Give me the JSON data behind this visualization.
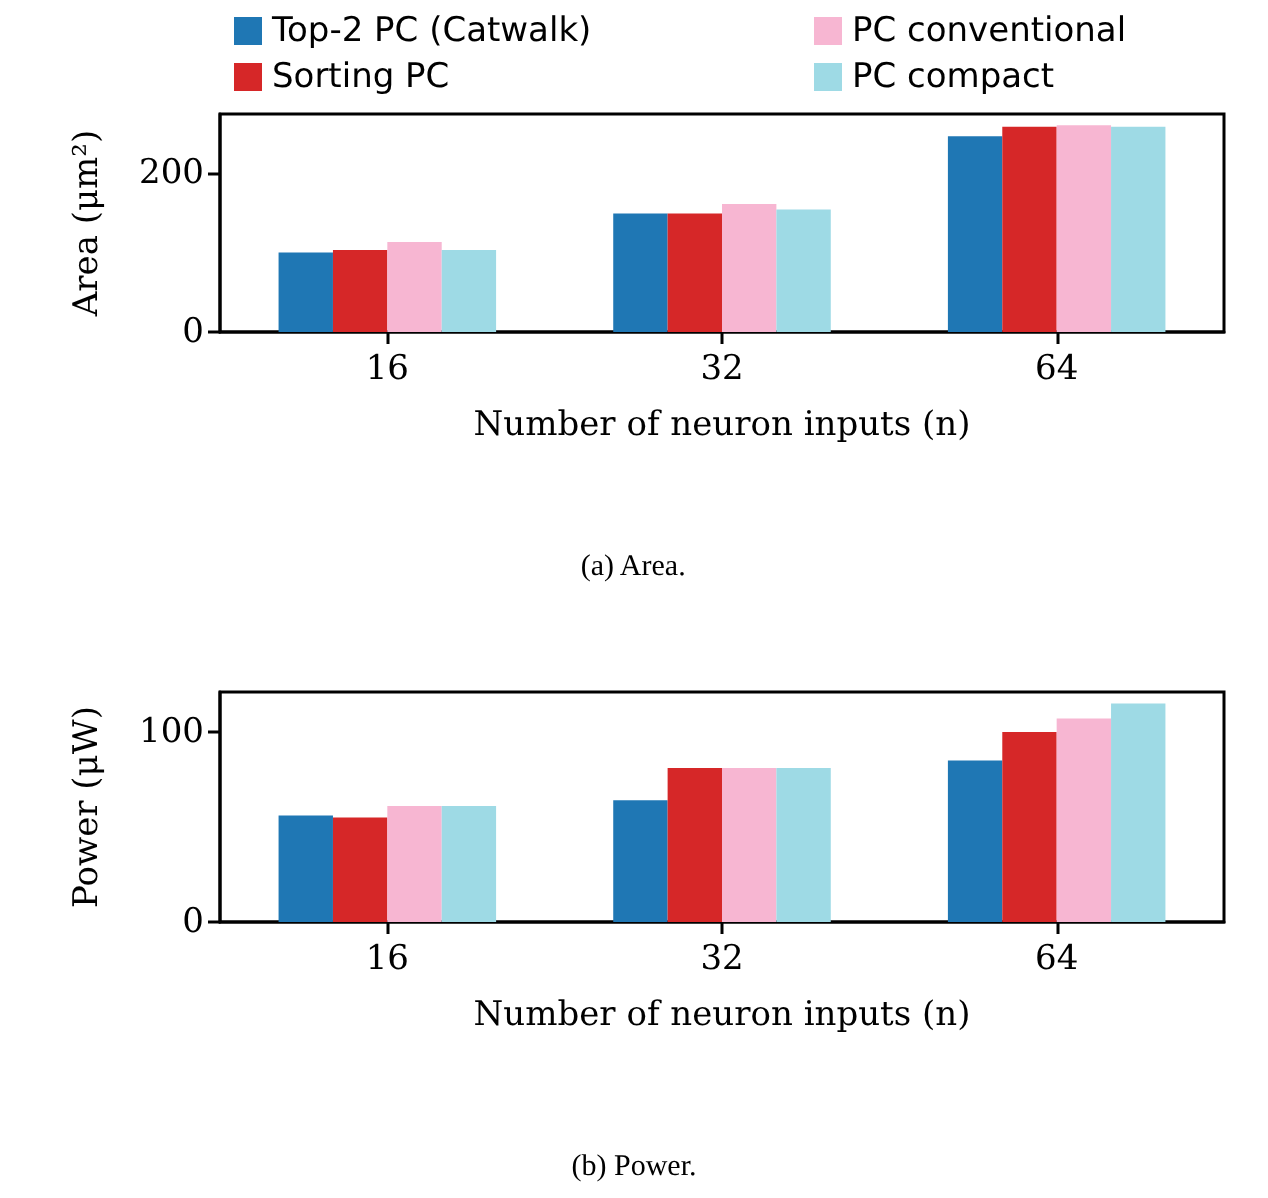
{
  "chart_data": [
    {
      "type": "bar",
      "xlabel": "Number of neuron inputs (n)",
      "ylabel": "Area (μm²)",
      "categories": [
        "16",
        "32",
        "64"
      ],
      "series": [
        {
          "name": "Top-2 PC (Catwalk)",
          "color": "#1f77b4",
          "values": [
            100,
            149,
            246
          ]
        },
        {
          "name": "Sorting PC",
          "color": "#d62728",
          "values": [
            103,
            149,
            258
          ]
        },
        {
          "name": "PC conventional",
          "color": "#f7b6d2",
          "values": [
            113,
            161,
            260
          ]
        },
        {
          "name": "PC compact",
          "color": "#9edae5",
          "values": [
            103,
            154,
            258
          ]
        }
      ],
      "ylim": [
        0,
        274
      ],
      "yticks": [
        0,
        200
      ],
      "legend": "top",
      "annotations": [
        "(a) Area."
      ]
    },
    {
      "type": "bar",
      "xlabel": "Number of neuron inputs (n)",
      "ylabel": "Power (μW)",
      "categories": [
        "16",
        "32",
        "64"
      ],
      "series": [
        {
          "color": "#1f77b4",
          "values": [
            56,
            64,
            85
          ]
        },
        {
          "color": "#d62728",
          "values": [
            55,
            81,
            100
          ]
        },
        {
          "color": "#f7b6d2",
          "values": [
            61,
            81,
            107
          ]
        },
        {
          "color": "#9edae5",
          "values": [
            61,
            81,
            115
          ]
        }
      ],
      "ylim": [
        0,
        121
      ],
      "yticks": [
        0,
        100
      ],
      "annotations": [
        "(b) Power."
      ]
    }
  ]
}
